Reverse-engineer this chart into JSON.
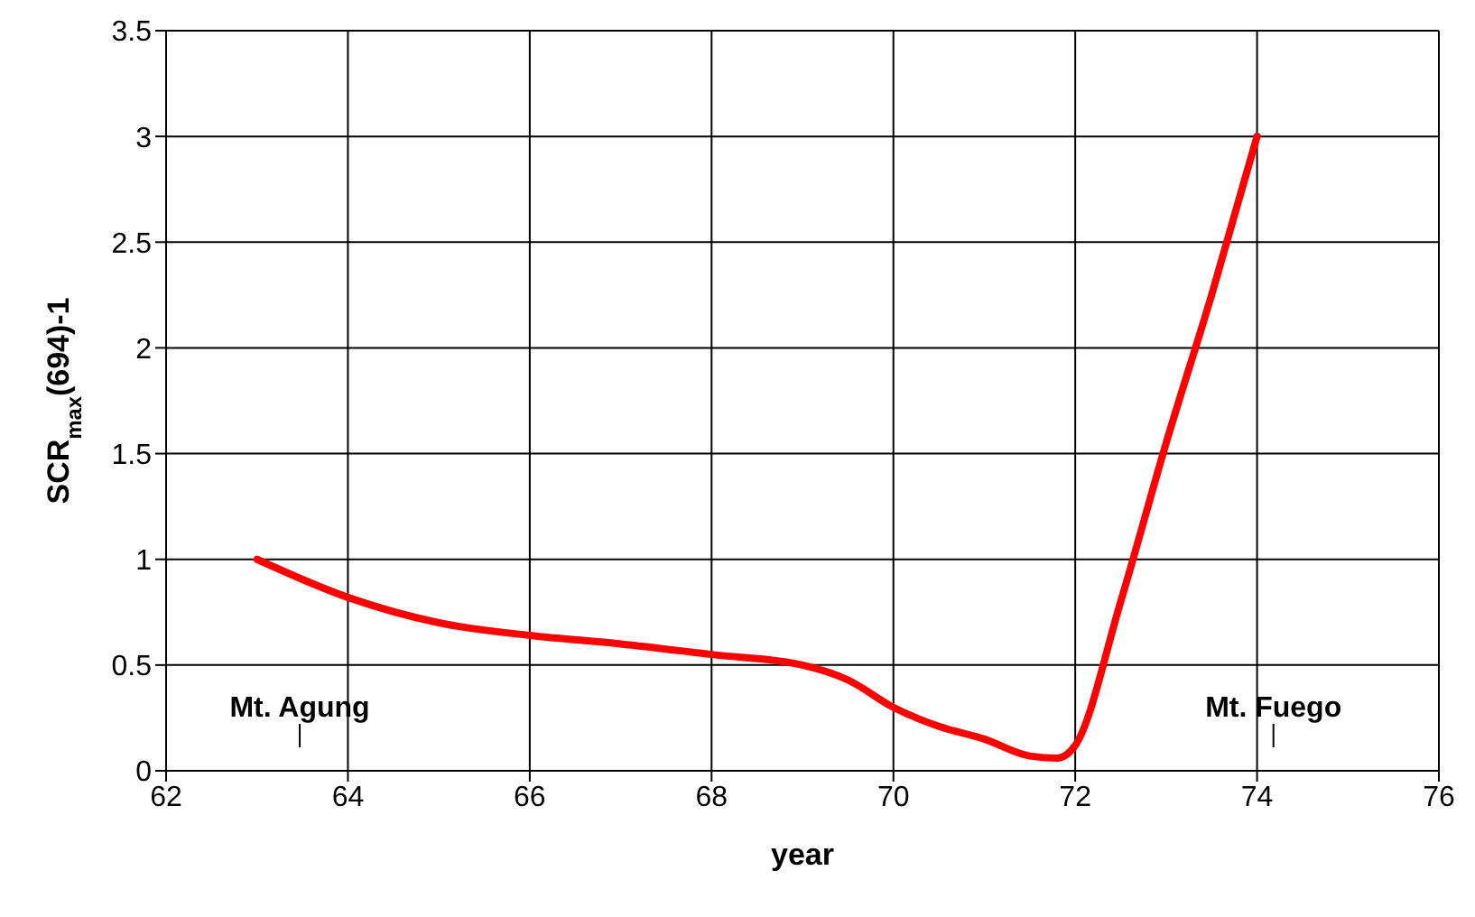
{
  "chart_data": {
    "type": "line",
    "xlabel": "year",
    "ylabel": "SCR$_{max}$(694)-1",
    "x": [
      63,
      64,
      65,
      66,
      67,
      68,
      69,
      69.5,
      70,
      70.5,
      71,
      71.5,
      71.8,
      72,
      72.5,
      73,
      73.5,
      74
    ],
    "series": [
      {
        "color": "#ff0000",
        "values": [
          1.0,
          0.82,
          0.7,
          0.64,
          0.6,
          0.55,
          0.5,
          0.43,
          0.3,
          0.21,
          0.15,
          0.07,
          0.06,
          0.12,
          0.8,
          1.55,
          2.25,
          3.0
        ]
      }
    ],
    "xlim": [
      62,
      76
    ],
    "xticks": [
      62,
      64,
      66,
      68,
      70,
      72,
      74,
      76
    ],
    "ylim": [
      0,
      3.5
    ],
    "yticks": [
      0,
      0.5,
      1,
      1.5,
      2,
      2.5,
      3,
      3.5
    ],
    "grid": true,
    "marker": "none",
    "line_style": "solid",
    "annotations": [
      "Mt. Agung",
      "Mt. Fuego"
    ]
  }
}
